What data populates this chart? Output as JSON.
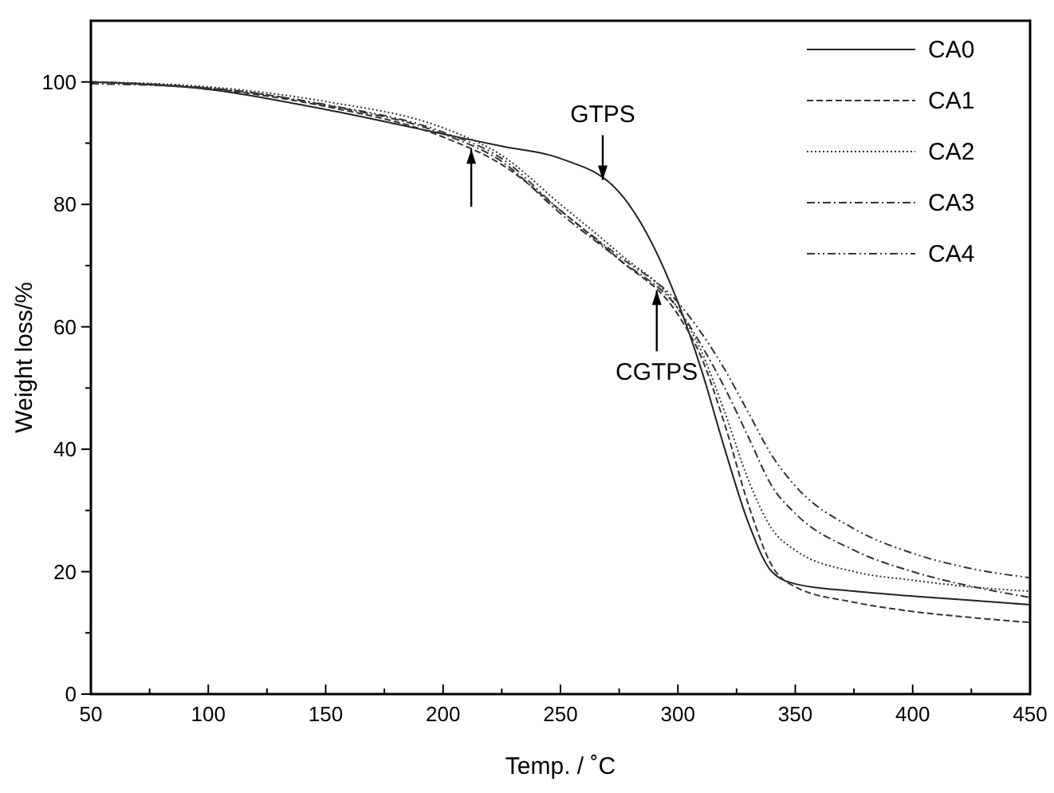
{
  "chart_data": {
    "type": "line",
    "xlabel": "Temp. / ˚C",
    "ylabel": "Weight loss/%",
    "x": [
      50,
      100,
      150,
      200,
      225,
      250,
      275,
      300,
      310,
      320,
      330,
      340,
      350,
      375,
      400,
      425,
      450
    ],
    "xlim": [
      50,
      450
    ],
    "ylim": [
      0,
      110
    ],
    "xticks": [
      50,
      {
        "value": 75,
        "label": null
      },
      100,
      {
        "value": 125,
        "label": null
      },
      150,
      {
        "value": 175,
        "label": null
      },
      200,
      {
        "value": 225,
        "label": null
      },
      250,
      {
        "value": 275,
        "label": null
      },
      300,
      {
        "value": 325,
        "label": null
      },
      350,
      {
        "value": 375,
        "label": null
      },
      400,
      {
        "value": 425,
        "label": null
      },
      450
    ],
    "yticks": [
      0,
      {
        "value": 10,
        "label": null
      },
      20,
      {
        "value": 30,
        "label": null
      },
      40,
      {
        "value": 50,
        "label": null
      },
      60,
      {
        "value": 70,
        "label": null
      },
      80,
      {
        "value": 90,
        "label": null
      },
      100
    ],
    "grid": false,
    "legend": "top right",
    "annotations": [
      {
        "text": "GTPS",
        "x": 268,
        "y": 84
      },
      {
        "text": "CGTPS",
        "x": 291,
        "y": 65.9
      }
    ],
    "series": [
      {
        "name": "CA0",
        "color": "#222222",
        "line_style": "solid",
        "values": [
          100,
          98.8,
          95.5,
          91.5,
          89.5,
          87.5,
          82,
          64,
          53,
          40,
          28,
          20,
          18,
          16.8,
          16,
          15.3,
          14.6
        ]
      },
      {
        "name": "CA1",
        "color": "#333333",
        "line_style": "dashed",
        "values": [
          100,
          98.9,
          96,
          91,
          86.5,
          79,
          71,
          62,
          55,
          44,
          31,
          21,
          17.5,
          15,
          13.5,
          12.5,
          11.7
        ]
      },
      {
        "name": "CA2",
        "color": "#333333",
        "line_style": "dotted",
        "values": [
          100,
          99.2,
          96.8,
          92.5,
          88,
          80,
          72,
          63,
          56,
          46,
          35,
          27,
          23.5,
          20,
          18.6,
          17.5,
          16.8
        ]
      },
      {
        "name": "CA3",
        "color": "#333333",
        "line_style": "dashdot",
        "values": [
          99.7,
          99,
          96.2,
          91.5,
          87,
          78.5,
          71,
          63,
          57,
          50,
          42,
          34,
          29.5,
          23.5,
          20,
          17.6,
          15.8
        ]
      },
      {
        "name": "CA4",
        "color": "#333333",
        "line_style": "dashdotdot",
        "values": [
          100,
          99,
          96.3,
          91.8,
          87.5,
          79,
          71.5,
          64,
          59,
          53,
          46,
          39,
          34,
          27,
          23,
          20.5,
          19
        ]
      }
    ]
  }
}
